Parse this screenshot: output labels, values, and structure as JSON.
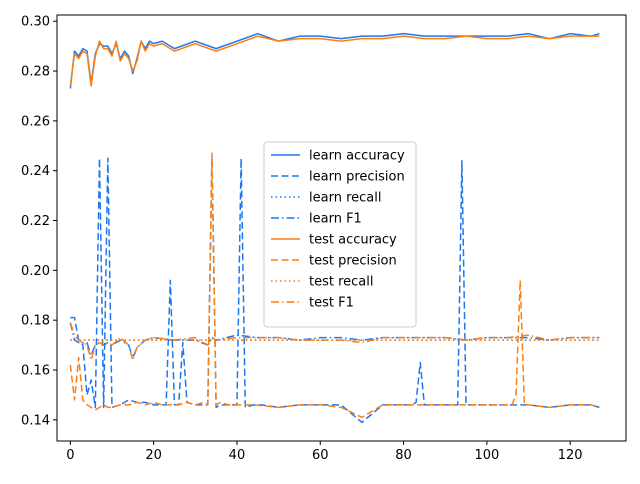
{
  "chart_data": {
    "type": "line",
    "title": "",
    "xlabel": "",
    "ylabel": "",
    "xlim": [
      -3.2,
      133.4
    ],
    "ylim": [
      0.1315,
      0.3025
    ],
    "xticks": [
      0,
      20,
      40,
      60,
      80,
      100,
      120
    ],
    "yticks": [
      0.14,
      0.16,
      0.18,
      0.2,
      0.22,
      0.24,
      0.26,
      0.28,
      0.3
    ],
    "ytick_labels": [
      "0.14",
      "0.16",
      "0.18",
      "0.20",
      "0.22",
      "0.24",
      "0.26",
      "0.28",
      "0.30"
    ],
    "grid": false,
    "legend_position": "center",
    "series": [
      {
        "name": "learn accuracy",
        "color": "#1f77f0",
        "dash": "solid",
        "x": [
          0,
          1,
          2,
          3,
          4,
          5,
          6,
          7,
          8,
          9,
          10,
          11,
          12,
          13,
          14,
          15,
          16,
          17,
          18,
          19,
          20,
          22,
          25,
          30,
          35,
          40,
          45,
          50,
          55,
          60,
          65,
          70,
          75,
          80,
          85,
          90,
          95,
          100,
          105,
          110,
          115,
          120,
          125,
          127
        ],
        "y": [
          0.273,
          0.288,
          0.286,
          0.289,
          0.288,
          0.275,
          0.287,
          0.291,
          0.29,
          0.29,
          0.287,
          0.291,
          0.285,
          0.288,
          0.286,
          0.279,
          0.285,
          0.292,
          0.289,
          0.292,
          0.291,
          0.292,
          0.289,
          0.292,
          0.289,
          0.292,
          0.295,
          0.292,
          0.294,
          0.294,
          0.293,
          0.294,
          0.294,
          0.295,
          0.294,
          0.294,
          0.294,
          0.294,
          0.294,
          0.295,
          0.293,
          0.295,
          0.294,
          0.295
        ]
      },
      {
        "name": "learn precision",
        "color": "#1f77f0",
        "dash": "dashed",
        "x": [
          0,
          1,
          2,
          3,
          4,
          5,
          6,
          7,
          8,
          9,
          10,
          12,
          14,
          16,
          18,
          20,
          22,
          23,
          24,
          25,
          26,
          27,
          28,
          30,
          32,
          33,
          34,
          35,
          36,
          38,
          40,
          41,
          42,
          44,
          46,
          50,
          55,
          60,
          65,
          70,
          75,
          80,
          82,
          83,
          84,
          85,
          87,
          90,
          93,
          94,
          95,
          96,
          100,
          105,
          110,
          115,
          120,
          125,
          127
        ],
        "y": [
          0.181,
          0.181,
          0.172,
          0.17,
          0.15,
          0.156,
          0.145,
          0.245,
          0.145,
          0.245,
          0.145,
          0.146,
          0.148,
          0.147,
          0.147,
          0.146,
          0.146,
          0.146,
          0.196,
          0.146,
          0.146,
          0.171,
          0.147,
          0.146,
          0.146,
          0.146,
          0.245,
          0.145,
          0.146,
          0.146,
          0.146,
          0.245,
          0.145,
          0.146,
          0.146,
          0.145,
          0.146,
          0.146,
          0.146,
          0.139,
          0.146,
          0.146,
          0.146,
          0.147,
          0.163,
          0.146,
          0.146,
          0.146,
          0.146,
          0.244,
          0.146,
          0.146,
          0.146,
          0.146,
          0.146,
          0.145,
          0.146,
          0.146,
          0.145
        ]
      },
      {
        "name": "learn recall",
        "color": "#1f77f0",
        "dash": "dotted",
        "x": [
          0,
          20,
          40,
          60,
          80,
          100,
          120,
          127
        ],
        "y": [
          0.172,
          0.172,
          0.172,
          0.172,
          0.172,
          0.172,
          0.172,
          0.172
        ]
      },
      {
        "name": "learn F1",
        "color": "#1f77f0",
        "dash": "dashdot",
        "x": [
          0,
          1,
          2,
          3,
          4,
          5,
          6,
          7,
          8,
          9,
          10,
          12,
          14,
          15,
          16,
          18,
          20,
          25,
          30,
          33,
          34,
          35,
          40,
          45,
          50,
          55,
          60,
          65,
          70,
          75,
          80,
          85,
          90,
          95,
          100,
          105,
          110,
          115,
          120,
          125,
          127
        ],
        "y": [
          0.179,
          0.172,
          0.171,
          0.171,
          0.171,
          0.166,
          0.17,
          0.171,
          0.17,
          0.171,
          0.17,
          0.172,
          0.17,
          0.165,
          0.169,
          0.172,
          0.173,
          0.172,
          0.172,
          0.17,
          0.173,
          0.172,
          0.174,
          0.173,
          0.173,
          0.172,
          0.173,
          0.173,
          0.172,
          0.173,
          0.173,
          0.173,
          0.173,
          0.172,
          0.173,
          0.173,
          0.173,
          0.172,
          0.173,
          0.173,
          0.173
        ]
      },
      {
        "name": "test accuracy",
        "color": "#ff7f0e",
        "dash": "solid",
        "x": [
          0,
          1,
          2,
          3,
          4,
          5,
          6,
          7,
          8,
          9,
          10,
          11,
          12,
          13,
          14,
          15,
          16,
          17,
          18,
          19,
          20,
          22,
          25,
          30,
          35,
          40,
          45,
          50,
          55,
          60,
          65,
          70,
          75,
          80,
          85,
          90,
          95,
          100,
          105,
          110,
          115,
          120,
          125,
          127
        ],
        "y": [
          0.274,
          0.287,
          0.285,
          0.288,
          0.287,
          0.274,
          0.286,
          0.292,
          0.289,
          0.289,
          0.286,
          0.292,
          0.284,
          0.287,
          0.285,
          0.28,
          0.284,
          0.292,
          0.288,
          0.291,
          0.29,
          0.291,
          0.288,
          0.291,
          0.288,
          0.291,
          0.294,
          0.292,
          0.293,
          0.293,
          0.292,
          0.293,
          0.293,
          0.294,
          0.293,
          0.293,
          0.294,
          0.293,
          0.293,
          0.294,
          0.293,
          0.294,
          0.294,
          0.294
        ]
      },
      {
        "name": "test precision",
        "color": "#ff7f0e",
        "dash": "dashed",
        "x": [
          0,
          1,
          2,
          3,
          4,
          5,
          6,
          7,
          8,
          9,
          10,
          12,
          14,
          16,
          18,
          20,
          22,
          24,
          26,
          28,
          30,
          32,
          33,
          34,
          35,
          36,
          38,
          40,
          44,
          50,
          55,
          60,
          65,
          70,
          75,
          80,
          85,
          90,
          95,
          100,
          105,
          106,
          107,
          108,
          109,
          110,
          115,
          120,
          125,
          127
        ],
        "y": [
          0.162,
          0.148,
          0.165,
          0.148,
          0.146,
          0.145,
          0.144,
          0.145,
          0.146,
          0.145,
          0.145,
          0.146,
          0.146,
          0.147,
          0.146,
          0.147,
          0.146,
          0.146,
          0.146,
          0.147,
          0.146,
          0.147,
          0.146,
          0.247,
          0.146,
          0.147,
          0.146,
          0.146,
          0.146,
          0.145,
          0.146,
          0.146,
          0.145,
          0.141,
          0.146,
          0.146,
          0.146,
          0.146,
          0.146,
          0.146,
          0.146,
          0.146,
          0.15,
          0.196,
          0.146,
          0.146,
          0.145,
          0.146,
          0.146,
          0.145
        ]
      },
      {
        "name": "test recall",
        "color": "#ff7f0e",
        "dash": "dotted",
        "x": [
          0,
          20,
          40,
          60,
          80,
          100,
          120,
          127
        ],
        "y": [
          0.172,
          0.172,
          0.172,
          0.172,
          0.172,
          0.172,
          0.172,
          0.172
        ]
      },
      {
        "name": "test F1",
        "color": "#ff7f0e",
        "dash": "dashdot",
        "x": [
          0,
          1,
          2,
          3,
          4,
          5,
          6,
          7,
          8,
          9,
          10,
          12,
          14,
          15,
          16,
          18,
          20,
          25,
          30,
          33,
          34,
          35,
          40,
          45,
          50,
          55,
          60,
          65,
          70,
          75,
          80,
          85,
          90,
          95,
          100,
          105,
          110,
          115,
          120,
          125,
          127
        ],
        "y": [
          0.179,
          0.174,
          0.172,
          0.171,
          0.17,
          0.164,
          0.17,
          0.171,
          0.17,
          0.171,
          0.17,
          0.173,
          0.17,
          0.164,
          0.169,
          0.172,
          0.173,
          0.172,
          0.173,
          0.17,
          0.173,
          0.172,
          0.173,
          0.173,
          0.173,
          0.172,
          0.172,
          0.172,
          0.171,
          0.173,
          0.173,
          0.173,
          0.173,
          0.172,
          0.173,
          0.173,
          0.174,
          0.172,
          0.173,
          0.173,
          0.173
        ]
      }
    ]
  }
}
